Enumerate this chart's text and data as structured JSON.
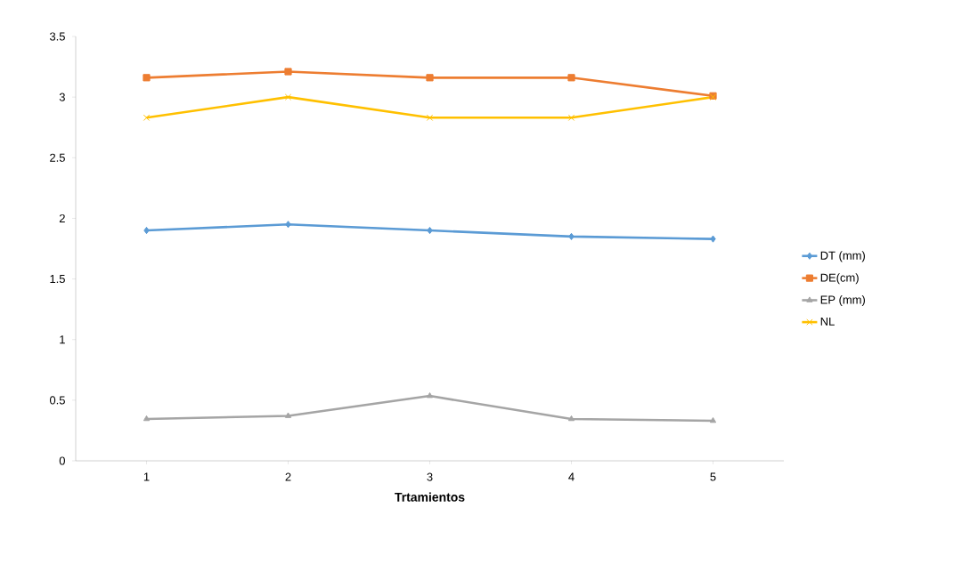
{
  "chart_data": {
    "type": "line",
    "xlabel": "**Trtamientos**",
    "categories": [
      "1",
      "2",
      "3",
      "4",
      "5"
    ],
    "ylim": [
      0,
      3.5
    ],
    "yticks": [
      0,
      0.5,
      1,
      1.5,
      2,
      2.5,
      3,
      3.5
    ],
    "grid": false,
    "legend": "right",
    "series": [
      {
        "name": "DT (mm)",
        "color": "#5b9bd5",
        "marker": "diamond",
        "values": [
          1.9,
          1.95,
          1.9,
          1.85,
          1.83
        ]
      },
      {
        "name": "DE(cm)",
        "color": "#ed7d31",
        "marker": "square",
        "values": [
          3.16,
          3.21,
          3.16,
          3.16,
          3.01
        ]
      },
      {
        "name": "EP (mm)",
        "color": "#a5a5a5",
        "marker": "triangle",
        "values": [
          0.345,
          0.37,
          0.535,
          0.345,
          0.33
        ]
      },
      {
        "name": "NL",
        "color": "#ffc000",
        "marker": "cross",
        "values": [
          2.83,
          3.0,
          2.83,
          2.83,
          3.0
        ]
      }
    ]
  }
}
